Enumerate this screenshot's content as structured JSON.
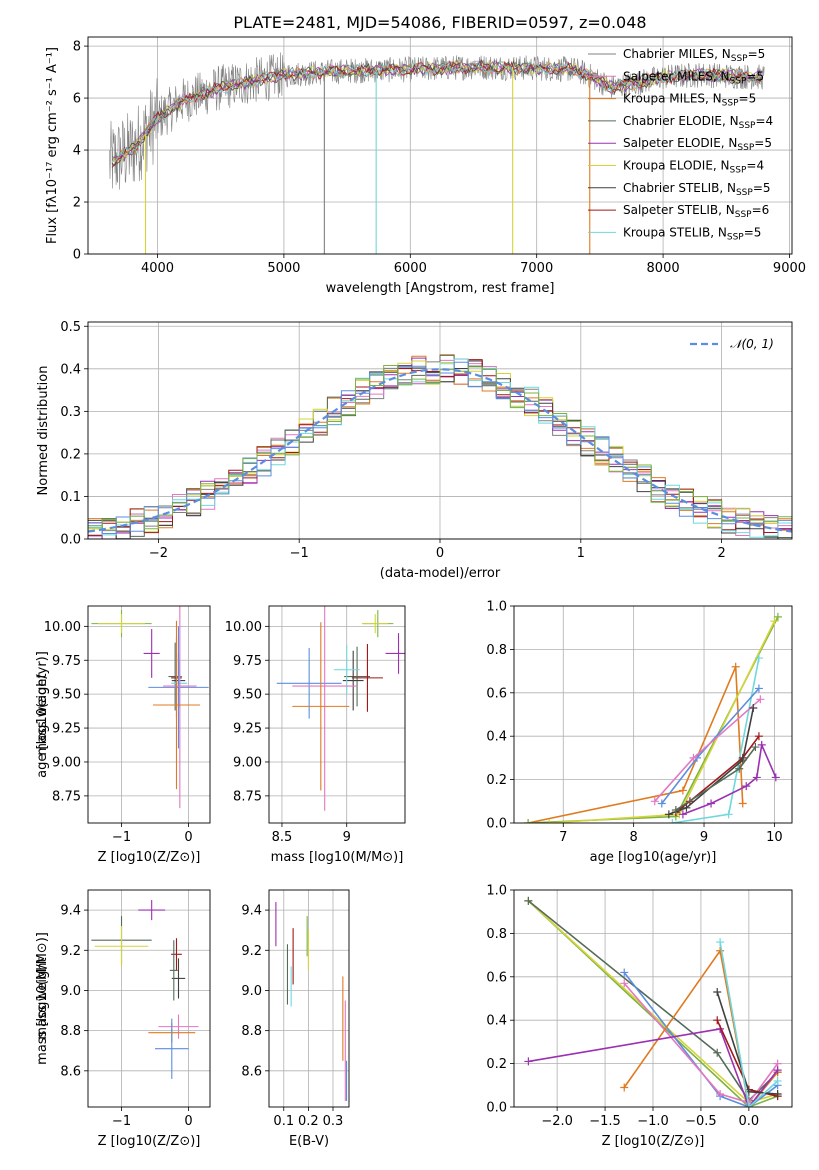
{
  "figure": {
    "title": "PLATE=2481, MJD=54086, FIBERID=0597, z=0.048"
  },
  "legend_models": [
    {
      "label": "Chabrier MILES, N",
      "sub": "SSP",
      "tail": "=5",
      "color": "#808080"
    },
    {
      "label": "Salpeter MILES, N",
      "sub": "SSP",
      "tail": "=5",
      "color": "#e377c2"
    },
    {
      "label": "Kroupa MILES, N",
      "sub": "SSP",
      "tail": "=5",
      "color": "#e07a20"
    },
    {
      "label": "Chabrier ELODIE, N",
      "sub": "SSP",
      "tail": "=4",
      "color": "#556b5a"
    },
    {
      "label": "Salpeter ELODIE, N",
      "sub": "SSP",
      "tail": "=5",
      "color": "#9b30b0"
    },
    {
      "label": "Kroupa ELODIE, N",
      "sub": "SSP",
      "tail": "=4",
      "color": "#d4d43a"
    },
    {
      "label": "Chabrier STELIB, N",
      "sub": "SSP",
      "tail": "=5",
      "color": "#404040"
    },
    {
      "label": "Salpeter STELIB, N",
      "sub": "SSP",
      "tail": "=6",
      "color": "#a01818"
    },
    {
      "label": "Kroupa STELIB, N",
      "sub": "SSP",
      "tail": "=5",
      "color": "#6fd8dc"
    }
  ],
  "extra_colors": {
    "blue": "#5b8ee0",
    "green": "#7cb342"
  },
  "chart_data": [
    {
      "id": "spectrum",
      "type": "line",
      "xlabel": "wavelength [Angstrom, rest frame]",
      "ylabel": "Flux [fλ10⁻¹⁷ erg cm⁻² s⁻¹ A⁻¹]",
      "xlim": [
        3450,
        9020
      ],
      "ylim": [
        0,
        8.35
      ],
      "xticks": [
        4000,
        5000,
        6000,
        7000,
        8000,
        9000
      ],
      "yticks": [
        0,
        2,
        4,
        6,
        8
      ],
      "continuum": {
        "x": [
          3620,
          3800,
          4000,
          4200,
          4500,
          5000,
          5500,
          6000,
          6500,
          7000,
          7300,
          7400,
          7600,
          8000,
          8300,
          8800
        ],
        "y": [
          3.5,
          4.0,
          5.2,
          5.9,
          6.4,
          6.9,
          7.05,
          7.1,
          7.2,
          7.15,
          7.1,
          6.9,
          6.4,
          6.8,
          6.9,
          6.8
        ]
      },
      "spikes": [
        3905,
        5320,
        5730,
        6810,
        7420
      ]
    },
    {
      "id": "residuals",
      "type": "histogram",
      "xlabel": "(data-model)/error",
      "ylabel": "Normed distribution",
      "xlim": [
        -2.5,
        2.5
      ],
      "ylim": [
        0,
        0.51
      ],
      "xticks": [
        -2,
        -1,
        0,
        1,
        2
      ],
      "yticks": [
        0.0,
        0.1,
        0.2,
        0.3,
        0.4,
        0.5
      ],
      "bin_width": 0.1,
      "legend": "𝒩(0, 1)"
    },
    {
      "id": "age_vs_Z",
      "type": "scatter",
      "xlabel": "Z [log10(Z/Z⊙)]",
      "ylabel": "age  [log10(age/yr)]",
      "xlim": [
        -1.5,
        0.32
      ],
      "ylim": [
        8.55,
        10.15
      ],
      "xticks": [
        -1,
        0
      ],
      "yticks": [
        8.75,
        9.0,
        9.25,
        9.5,
        9.75,
        10.0
      ],
      "points": [
        {
          "x": -1.0,
          "y": 10.02,
          "dx": 0.45,
          "dy": 0.1,
          "color": "#7cb342"
        },
        {
          "x": -1.0,
          "y": 10.02,
          "dx": 0.35,
          "dy": 0.07,
          "color": "#d4d43a"
        },
        {
          "x": -0.55,
          "y": 9.8,
          "dx": 0.12,
          "dy": 0.18,
          "color": "#9b30b0"
        },
        {
          "x": -0.2,
          "y": 9.63,
          "dx": 0.1,
          "dy": 0.25,
          "color": "#556b5a"
        },
        {
          "x": -0.18,
          "y": 9.62,
          "dx": 0.08,
          "dy": 0.3,
          "color": "#a01818"
        },
        {
          "x": -0.15,
          "y": 9.6,
          "dx": 0.1,
          "dy": 0.2,
          "color": "#404040"
        },
        {
          "x": -0.14,
          "y": 9.58,
          "dx": 0.12,
          "dy": 0.18,
          "color": "#6fd8dc"
        },
        {
          "x": -0.15,
          "y": 9.55,
          "dx": 0.45,
          "dy": 0.45,
          "color": "#5b8ee0"
        },
        {
          "x": -0.13,
          "y": 9.56,
          "dx": 0.25,
          "dy": 0.9,
          "color": "#e377c2"
        },
        {
          "x": -0.18,
          "y": 9.42,
          "dx": 0.35,
          "dy": 0.62,
          "color": "#e07a20"
        }
      ]
    },
    {
      "id": "age_vs_mass",
      "type": "scatter",
      "xlabel": "mass [log10(M/M⊙)]",
      "ylabel": "",
      "xlim": [
        8.4,
        9.45
      ],
      "ylim": [
        8.55,
        10.15
      ],
      "xticks": [
        8.5,
        9.0
      ],
      "yticks": [
        8.75,
        9.0,
        9.25,
        9.5,
        9.75,
        10.0
      ],
      "points": [
        {
          "x": 9.24,
          "y": 10.02,
          "dx": 0.12,
          "dy": 0.1,
          "color": "#7cb342"
        },
        {
          "x": 9.22,
          "y": 10.02,
          "dx": 0.1,
          "dy": 0.07,
          "color": "#d4d43a"
        },
        {
          "x": 9.4,
          "y": 9.8,
          "dx": 0.1,
          "dy": 0.15,
          "color": "#9b30b0"
        },
        {
          "x": 9.08,
          "y": 9.63,
          "dx": 0.1,
          "dy": 0.22,
          "color": "#556b5a"
        },
        {
          "x": 9.16,
          "y": 9.62,
          "dx": 0.12,
          "dy": 0.25,
          "color": "#a01818"
        },
        {
          "x": 9.05,
          "y": 9.6,
          "dx": 0.08,
          "dy": 0.22,
          "color": "#404040"
        },
        {
          "x": 9.0,
          "y": 9.68,
          "dx": 0.1,
          "dy": 0.18,
          "color": "#6fd8dc"
        },
        {
          "x": 8.71,
          "y": 9.58,
          "dx": 0.25,
          "dy": 0.26,
          "color": "#5b8ee0"
        },
        {
          "x": 8.83,
          "y": 9.56,
          "dx": 0.25,
          "dy": 0.92,
          "color": "#e377c2"
        },
        {
          "x": 8.8,
          "y": 9.41,
          "dx": 0.22,
          "dy": 0.62,
          "color": "#e07a20"
        }
      ]
    },
    {
      "id": "weight_vs_age",
      "type": "line",
      "xlabel": "age  [log10(age/yr)]",
      "ylabel": "mass weight",
      "xlim": [
        6.3,
        10.25
      ],
      "ylim": [
        0,
        1.0
      ],
      "xticks": [
        7,
        8,
        9,
        10
      ],
      "yticks": [
        0.0,
        0.2,
        0.4,
        0.6,
        0.8,
        1.0
      ],
      "series": [
        {
          "color": "#e07a20",
          "x": [
            6.5,
            8.7,
            9.45,
            9.55
          ],
          "y": [
            0.0,
            0.15,
            0.72,
            0.09
          ]
        },
        {
          "color": "#7cb342",
          "x": [
            6.5,
            8.6,
            10.05
          ],
          "y": [
            0.0,
            0.03,
            0.95
          ]
        },
        {
          "color": "#d4d43a",
          "x": [
            6.8,
            8.65,
            10.0
          ],
          "y": [
            0.0,
            0.04,
            0.93
          ]
        },
        {
          "color": "#6fd8dc",
          "x": [
            8.55,
            9.35,
            9.78
          ],
          "y": [
            0.0,
            0.04,
            0.76
          ]
        },
        {
          "color": "#5b8ee0",
          "x": [
            8.4,
            8.9,
            9.78
          ],
          "y": [
            0.09,
            0.3,
            0.62
          ]
        },
        {
          "color": "#e377c2",
          "x": [
            8.3,
            8.85,
            9.8
          ],
          "y": [
            0.1,
            0.3,
            0.57
          ]
        },
        {
          "color": "#9b30b0",
          "x": [
            8.7,
            9.1,
            9.6,
            9.75,
            9.82,
            10.02
          ],
          "y": [
            0.04,
            0.09,
            0.17,
            0.21,
            0.36,
            0.21
          ]
        },
        {
          "color": "#a01818",
          "x": [
            8.6,
            8.8,
            9.55,
            9.78
          ],
          "y": [
            0.05,
            0.1,
            0.3,
            0.4
          ]
        },
        {
          "color": "#404040",
          "x": [
            8.5,
            8.75,
            9.55,
            9.7
          ],
          "y": [
            0.04,
            0.07,
            0.29,
            0.53
          ]
        },
        {
          "color": "#556b5a",
          "x": [
            8.6,
            9.5,
            9.73
          ],
          "y": [
            0.06,
            0.25,
            0.35
          ]
        }
      ]
    },
    {
      "id": "mass_vs_Z",
      "type": "scatter",
      "xlabel": "Z [log10(Z/Z⊙)]",
      "ylabel": "mass [log10(M/M⊙)]",
      "xlim": [
        -1.5,
        0.32
      ],
      "ylim": [
        8.42,
        9.5
      ],
      "xticks": [
        -1,
        0
      ],
      "yticks": [
        8.6,
        8.8,
        9.0,
        9.2,
        9.4
      ],
      "points": [
        {
          "x": -1.0,
          "y": 9.25,
          "dx": 0.45,
          "dy": 0.12,
          "color": "#556b5a"
        },
        {
          "x": -1.0,
          "y": 9.22,
          "dx": 0.4,
          "dy": 0.1,
          "color": "#d4d43a"
        },
        {
          "x": -0.55,
          "y": 9.4,
          "dx": 0.2,
          "dy": 0.05,
          "color": "#9b30b0"
        },
        {
          "x": -0.18,
          "y": 9.18,
          "dx": 0.08,
          "dy": 0.08,
          "color": "#a01818"
        },
        {
          "x": -0.15,
          "y": 9.06,
          "dx": 0.1,
          "dy": 0.1,
          "color": "#404040"
        },
        {
          "x": -0.22,
          "y": 9.1,
          "dx": 0.06,
          "dy": 0.15,
          "color": "#556b5a"
        },
        {
          "x": -0.15,
          "y": 8.82,
          "dx": 0.3,
          "dy": 0.06,
          "color": "#e377c2"
        },
        {
          "x": -0.25,
          "y": 8.79,
          "dx": 0.35,
          "dy": 0.05,
          "color": "#e07a20"
        },
        {
          "x": -0.25,
          "y": 8.71,
          "dx": 0.25,
          "dy": 0.15,
          "color": "#5b8ee0"
        }
      ]
    },
    {
      "id": "mass_vs_ebv",
      "type": "scatter",
      "xlabel": "E(B-V)",
      "ylabel": "",
      "xlim": [
        0.04,
        0.365
      ],
      "ylim": [
        8.42,
        9.5
      ],
      "xticks": [
        0.1,
        0.2,
        0.3
      ],
      "yticks": [
        8.6,
        8.8,
        9.0,
        9.2,
        9.4
      ],
      "points": [
        {
          "x": 0.068,
          "y": 9.33,
          "dx": 0,
          "dy": 0.11,
          "color": "#9b30b0"
        },
        {
          "x": 0.115,
          "y": 9.08,
          "dx": 0,
          "dy": 0.15,
          "color": "#556b5a"
        },
        {
          "x": 0.13,
          "y": 9.02,
          "dx": 0,
          "dy": 0.1,
          "color": "#6fd8dc"
        },
        {
          "x": 0.138,
          "y": 9.17,
          "dx": 0,
          "dy": 0.14,
          "color": "#a01818"
        },
        {
          "x": 0.195,
          "y": 9.27,
          "dx": 0,
          "dy": 0.1,
          "color": "#7cb342"
        },
        {
          "x": 0.2,
          "y": 9.2,
          "dx": 0,
          "dy": 0.1,
          "color": "#d4d43a"
        },
        {
          "x": 0.34,
          "y": 8.86,
          "dx": 0,
          "dy": 0.21,
          "color": "#e07a20"
        },
        {
          "x": 0.35,
          "y": 8.7,
          "dx": 0,
          "dy": 0.25,
          "color": "#e377c2"
        },
        {
          "x": 0.355,
          "y": 8.55,
          "dx": 0,
          "dy": 0.1,
          "color": "#5b8ee0"
        }
      ]
    },
    {
      "id": "weight_vs_Z",
      "type": "line",
      "xlabel": "Z [log10(Z/Z⊙)]",
      "ylabel": "mass weight",
      "xlim": [
        -2.45,
        0.45
      ],
      "ylim": [
        0,
        1.0
      ],
      "xticks": [
        -2.0,
        -1.5,
        -1.0,
        -0.5,
        0.0
      ],
      "yticks": [
        0.0,
        0.2,
        0.4,
        0.6,
        0.8,
        1.0
      ],
      "series": [
        {
          "color": "#7cb342",
          "x": [
            -2.3,
            0.0,
            0.3
          ],
          "y": [
            0.95,
            0.0,
            0.05
          ]
        },
        {
          "color": "#d4d43a",
          "x": [
            -2.3,
            0.0,
            0.3
          ],
          "y": [
            0.95,
            0.02,
            0.06
          ]
        },
        {
          "color": "#556b5a",
          "x": [
            -2.3,
            -0.33,
            0.0,
            0.3
          ],
          "y": [
            0.95,
            0.25,
            0.03,
            0.16
          ]
        },
        {
          "color": "#5b8ee0",
          "x": [
            -1.3,
            -0.3,
            0.0,
            0.3
          ],
          "y": [
            0.62,
            0.05,
            0.0,
            0.1
          ]
        },
        {
          "color": "#e377c2",
          "x": [
            -1.3,
            -0.3,
            0.0,
            0.3
          ],
          "y": [
            0.57,
            0.06,
            0.02,
            0.2
          ]
        },
        {
          "color": "#e07a20",
          "x": [
            -1.3,
            -0.3,
            0.0,
            0.3
          ],
          "y": [
            0.09,
            0.72,
            0.0,
            0.16
          ]
        },
        {
          "color": "#9b30b0",
          "x": [
            -2.3,
            -0.3,
            0.0,
            0.3
          ],
          "y": [
            0.21,
            0.36,
            0.0,
            0.17
          ]
        },
        {
          "color": "#a01818",
          "x": [
            -0.33,
            0.0,
            0.3
          ],
          "y": [
            0.4,
            0.08,
            0.05
          ]
        },
        {
          "color": "#404040",
          "x": [
            -0.33,
            0.0,
            0.3
          ],
          "y": [
            0.53,
            0.07,
            0.06
          ]
        },
        {
          "color": "#6fd8dc",
          "x": [
            -0.3,
            0.0,
            0.3
          ],
          "y": [
            0.76,
            0.0,
            0.12
          ]
        }
      ]
    }
  ]
}
